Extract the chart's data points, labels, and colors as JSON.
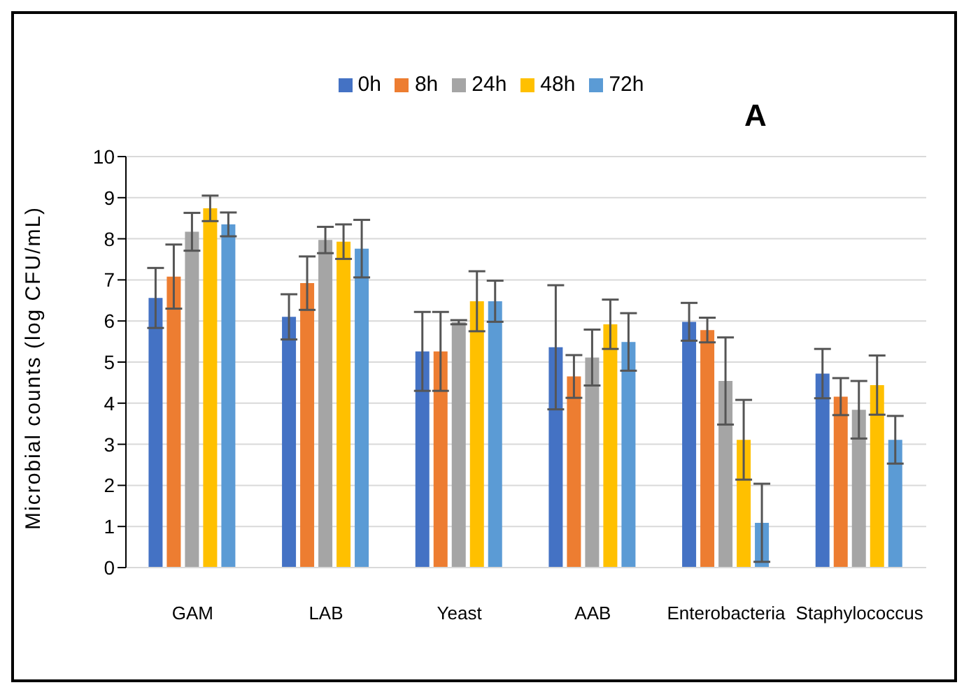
{
  "chart_data": {
    "type": "bar",
    "ylabel": "Microbial counts (log CFU/mL)",
    "annotations": [
      "A"
    ],
    "categories": [
      "GAM",
      "LAB",
      "Yeast",
      "AAB",
      "Enterobacteria",
      "Staphylococcus"
    ],
    "series": [
      {
        "name": "0h",
        "color": "#4472c4",
        "values": [
          6.56,
          6.1,
          5.26,
          5.36,
          5.98,
          4.72
        ],
        "errors": [
          0.73,
          0.55,
          0.96,
          1.51,
          0.46,
          0.6
        ]
      },
      {
        "name": "8h",
        "color": "#ed7d31",
        "values": [
          7.08,
          6.92,
          5.26,
          4.65,
          5.78,
          4.16
        ],
        "errors": [
          0.78,
          0.65,
          0.96,
          0.52,
          0.3,
          0.45
        ]
      },
      {
        "name": "24h",
        "color": "#a5a5a5",
        "values": [
          8.17,
          7.97,
          5.97,
          5.11,
          4.54,
          3.84
        ],
        "errors": [
          0.46,
          0.32,
          0.05,
          0.68,
          1.06,
          0.7
        ]
      },
      {
        "name": "48h",
        "color": "#ffc000",
        "values": [
          8.74,
          7.93,
          6.48,
          5.92,
          3.11,
          4.44
        ],
        "errors": [
          0.31,
          0.42,
          0.73,
          0.6,
          0.97,
          0.72
        ]
      },
      {
        "name": "72h",
        "color": "#5b9bd5",
        "values": [
          8.35,
          7.76,
          6.48,
          5.49,
          1.09,
          3.11
        ],
        "errors": [
          0.29,
          0.7,
          0.5,
          0.7,
          0.95,
          0.58
        ]
      }
    ],
    "ylim": [
      0,
      10
    ],
    "yticks": [
      0,
      1,
      2,
      3,
      4,
      5,
      6,
      7,
      8,
      9,
      10
    ],
    "grid": "y",
    "legend": "top"
  }
}
